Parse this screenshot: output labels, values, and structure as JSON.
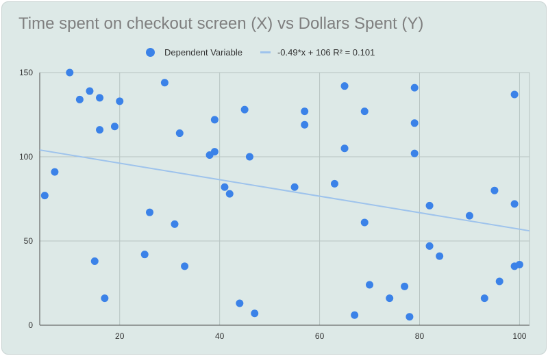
{
  "chart_data": {
    "type": "scatter",
    "title": "Time spent on checkout screen (X) vs Dollars Spent (Y)",
    "xlabel": "",
    "ylabel": "",
    "xlim": [
      4,
      102
    ],
    "ylim": [
      0,
      150
    ],
    "x_ticks": [
      20,
      40,
      60,
      80,
      100
    ],
    "y_ticks": [
      0,
      50,
      100,
      150
    ],
    "grid": true,
    "legend_position": "top",
    "series": [
      {
        "name": "Dependent Variable",
        "color": "#3b82e8",
        "points": [
          [
            5,
            77
          ],
          [
            7,
            91
          ],
          [
            10,
            150
          ],
          [
            12,
            134
          ],
          [
            14,
            139
          ],
          [
            15,
            38
          ],
          [
            16,
            135
          ],
          [
            16,
            116
          ],
          [
            17,
            16
          ],
          [
            19,
            118
          ],
          [
            20,
            133
          ],
          [
            25,
            42
          ],
          [
            26,
            67
          ],
          [
            29,
            144
          ],
          [
            31,
            60
          ],
          [
            32,
            114
          ],
          [
            33,
            35
          ],
          [
            38,
            101
          ],
          [
            39,
            103
          ],
          [
            39,
            122
          ],
          [
            41,
            82
          ],
          [
            42,
            78
          ],
          [
            44,
            13
          ],
          [
            45,
            128
          ],
          [
            46,
            100
          ],
          [
            47,
            7
          ],
          [
            55,
            82
          ],
          [
            57,
            127
          ],
          [
            57,
            119
          ],
          [
            63,
            84
          ],
          [
            65,
            142
          ],
          [
            65,
            105
          ],
          [
            67,
            6
          ],
          [
            69,
            127
          ],
          [
            69,
            61
          ],
          [
            70,
            24
          ],
          [
            74,
            16
          ],
          [
            77,
            23
          ],
          [
            78,
            5
          ],
          [
            79,
            141
          ],
          [
            79,
            120
          ],
          [
            79,
            102
          ],
          [
            82,
            71
          ],
          [
            82,
            47
          ],
          [
            84,
            41
          ],
          [
            90,
            65
          ],
          [
            93,
            16
          ],
          [
            95,
            80
          ],
          [
            96,
            26
          ],
          [
            99,
            137
          ],
          [
            99,
            72
          ],
          [
            99,
            35
          ],
          [
            100,
            36
          ]
        ]
      }
    ],
    "trendline": {
      "label": "-0.49*x + 106 R² = 0.101",
      "slope": -0.49,
      "intercept": 106,
      "color": "#9ec3ec"
    }
  }
}
